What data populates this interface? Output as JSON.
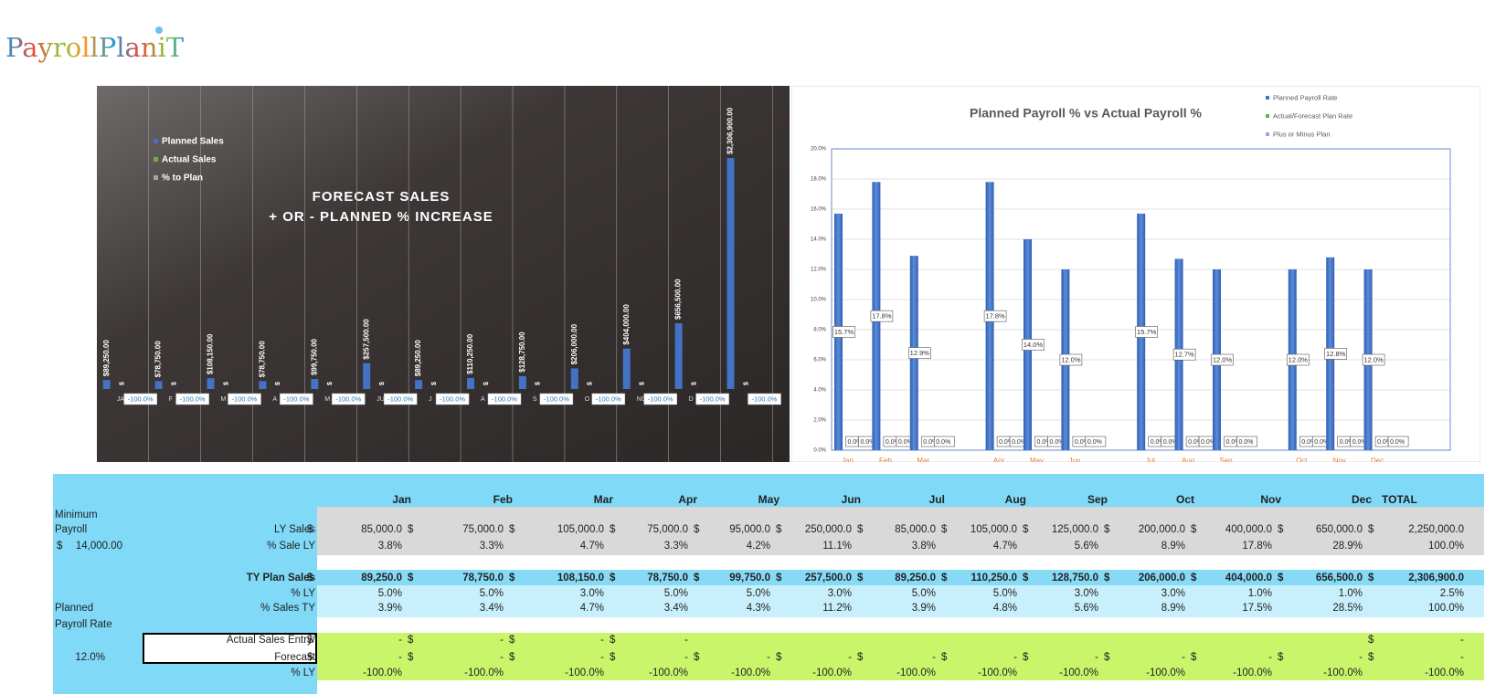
{
  "logo": "PayrollPlaniT",
  "chart_data": [
    {
      "type": "bar",
      "title": "FORECAST SALES",
      "subtitle": "+ OR - PLANNED % INCREASE",
      "categories": [
        "JA",
        "F",
        "M",
        "A",
        "M",
        "JU",
        "J",
        "A",
        "S",
        "O",
        "NO",
        "D",
        null
      ],
      "ylim": [
        0,
        3000000
      ],
      "series": [
        {
          "name": "Planned Sales",
          "color": "#4472c4",
          "values": [
            89250,
            78750,
            108150,
            78750,
            99750,
            257500,
            89250,
            110250,
            128750,
            206000,
            404000,
            656500,
            2306900
          ],
          "value_labels": [
            "$89,250.00",
            "$78,750.00",
            "$108,150.00",
            "$78,750.00",
            "$99,750.00",
            "$257,500.00",
            "$89,250.00",
            "$110,250.00",
            "$128,750.00",
            "$206,000.00",
            "$404,000.00",
            "$656,500.00",
            "$2,306,900.00"
          ]
        },
        {
          "name": "Actual Sales",
          "color": "#70ad47",
          "values": [
            0,
            0,
            0,
            0,
            0,
            0,
            0,
            0,
            0,
            0,
            0,
            0,
            0
          ],
          "value_labels": [
            "$",
            "$",
            "$",
            "$",
            "$",
            "$",
            "$",
            "$",
            "$",
            "$",
            "$",
            "$",
            "$"
          ]
        },
        {
          "name": "% to Plan",
          "color": "#a5a5a5",
          "values": [
            -100,
            -100,
            -100,
            -100,
            -100,
            -100,
            -100,
            -100,
            -100,
            -100,
            -100,
            -100,
            -100
          ],
          "value_labels": [
            "-100.0%",
            "-100.0%",
            "-100.0%",
            "-100.0%",
            "-100.0%",
            "-100.0%",
            "-100.0%",
            "-100.0%",
            "-100.0%",
            "-100.0%",
            "-100.0%",
            "-100.0%",
            "-100.0%"
          ]
        }
      ]
    },
    {
      "type": "bar",
      "title": "Planned Payroll % vs Actual Payroll %",
      "categories": [
        "Jan",
        "Feb",
        "Mar",
        null,
        "Apr",
        "May",
        "Jun",
        null,
        "Jul",
        "Aug",
        "Sep",
        null,
        "Oct",
        "Nov",
        "Dec"
      ],
      "ylim": [
        0,
        20
      ],
      "grid": true,
      "yticks": [
        {
          "value": 0,
          "label": "0.0%"
        },
        {
          "value": 2,
          "label": "2.0%"
        },
        {
          "value": 4,
          "label": "4.0%"
        },
        {
          "value": 6,
          "label": "6.0%"
        },
        {
          "value": 8,
          "label": "8.0%"
        },
        {
          "value": 10,
          "label": "10.0%"
        },
        {
          "value": 12,
          "label": "12.0%"
        },
        {
          "value": 14,
          "label": "14.0%"
        },
        {
          "value": 16,
          "label": "16.0%"
        },
        {
          "value": 18,
          "label": "18.0%"
        },
        {
          "value": 20,
          "label": "20.0%"
        }
      ],
      "series": [
        {
          "name": "Planned Payroll Rate",
          "color": "#4472c4",
          "values": [
            15.7,
            17.8,
            12.9,
            null,
            17.8,
            14.0,
            12.0,
            null,
            15.7,
            12.7,
            12.0,
            null,
            12.0,
            12.8,
            12.0
          ],
          "value_labels": [
            "15.7%",
            "17.8%",
            "12.9%",
            null,
            "17.8%",
            "14.0%",
            "12.0%",
            null,
            "15.7%",
            "12.7%",
            "12.0%",
            null,
            "12.0%",
            "12.8%",
            "12.0%"
          ]
        },
        {
          "name": "Actual/Forecast Plan Rate",
          "color": "#70ad47",
          "values": [
            0,
            0,
            0,
            null,
            0,
            0,
            0,
            null,
            0,
            0,
            0,
            null,
            0,
            0,
            0
          ],
          "value_labels": [
            "0.0%",
            "0.0%",
            "0.0%",
            null,
            "0.0%",
            "0.0%",
            "0.0%",
            null,
            "0.0%",
            "0.0%",
            "0.0%",
            null,
            "0.0%",
            "0.0%",
            "0.0%"
          ]
        },
        {
          "name": "Plus or Minus Plan",
          "color": "#8faadc",
          "values": [
            0,
            0,
            0,
            null,
            0,
            0,
            0,
            null,
            0,
            0,
            0,
            null,
            0,
            0,
            0
          ],
          "value_labels": [
            "0.0%",
            "0.0%",
            "0.0%",
            null,
            "0.0%",
            "0.0%",
            "0.0%",
            null,
            "0.0%",
            "0.0%",
            "0.0%",
            null,
            "0.0%",
            "0.0%",
            "0.0%"
          ]
        }
      ]
    }
  ],
  "table": {
    "columns": [
      "Jan",
      "Feb",
      "Mar",
      "Apr",
      "May",
      "Jun",
      "Jul",
      "Aug",
      "Sep",
      "Oct",
      "Nov",
      "Dec",
      "TOTAL"
    ],
    "side": {
      "minimum_payroll": [
        "Minimum",
        "Payroll"
      ],
      "minimum_value": [
        "$",
        "14,000.00"
      ],
      "planned_rate": [
        "Planned",
        "Payroll Rate"
      ],
      "rate_value": "12.0%"
    },
    "rows": [
      {
        "label": "LY Sales",
        "cells": [
          [
            "$",
            "85,000.0"
          ],
          [
            "$",
            "75,000.0"
          ],
          [
            "$",
            "105,000.0"
          ],
          [
            "$",
            "75,000.0"
          ],
          [
            "$",
            "95,000.0"
          ],
          [
            "$",
            "250,000.0"
          ],
          [
            "$",
            "85,000.0"
          ],
          [
            "$",
            "105,000.0"
          ],
          [
            "$",
            "125,000.0"
          ],
          [
            "$",
            "200,000.0"
          ],
          [
            "$",
            "400,000.0"
          ],
          [
            "$",
            "650,000.0"
          ],
          [
            "$",
            "2,250,000.0"
          ]
        ]
      },
      {
        "label": "% Sale LY",
        "cells": [
          "3.8%",
          "3.3%",
          "4.7%",
          "3.3%",
          "4.2%",
          "11.1%",
          "3.8%",
          "4.7%",
          "5.6%",
          "8.9%",
          "17.8%",
          "28.9%",
          "100.0%"
        ]
      },
      {
        "label": "TY Plan Sales",
        "cells": [
          [
            "$",
            "89,250.0"
          ],
          [
            "$",
            "78,750.0"
          ],
          [
            "$",
            "108,150.0"
          ],
          [
            "$",
            "78,750.0"
          ],
          [
            "$",
            "99,750.0"
          ],
          [
            "$",
            "257,500.0"
          ],
          [
            "$",
            "89,250.0"
          ],
          [
            "$",
            "110,250.0"
          ],
          [
            "$",
            "128,750.0"
          ],
          [
            "$",
            "206,000.0"
          ],
          [
            "$",
            "404,000.0"
          ],
          [
            "$",
            "656,500.0"
          ],
          [
            "$",
            "2,306,900.0"
          ]
        ]
      },
      {
        "label": "% LY",
        "cells": [
          "5.0%",
          "5.0%",
          "3.0%",
          "5.0%",
          "5.0%",
          "3.0%",
          "5.0%",
          "5.0%",
          "3.0%",
          "3.0%",
          "1.0%",
          "1.0%",
          "2.5%"
        ]
      },
      {
        "label": "% Sales TY",
        "cells": [
          "3.9%",
          "3.4%",
          "4.7%",
          "3.4%",
          "4.3%",
          "11.2%",
          "3.9%",
          "4.8%",
          "5.6%",
          "8.9%",
          "17.5%",
          "28.5%",
          "100.0%"
        ]
      },
      {
        "label": "Actual Sales Entry/",
        "cells": [
          [
            "$",
            "-"
          ],
          [
            "$",
            "-"
          ],
          [
            "$",
            "-"
          ],
          [
            "$",
            "-"
          ],
          null,
          null,
          null,
          null,
          null,
          null,
          null,
          null,
          [
            "$",
            "-"
          ]
        ]
      },
      {
        "label": "Forecast",
        "cells": [
          [
            "$",
            "-"
          ],
          [
            "$",
            "-"
          ],
          [
            "$",
            "-"
          ],
          [
            "$",
            "-"
          ],
          [
            "$",
            "-"
          ],
          [
            "$",
            "-"
          ],
          [
            "$",
            "-"
          ],
          [
            "$",
            "-"
          ],
          [
            "$",
            "-"
          ],
          [
            "$",
            "-"
          ],
          [
            "$",
            "-"
          ],
          [
            "$",
            "-"
          ],
          [
            "$",
            "-"
          ]
        ]
      },
      {
        "label": "% LY",
        "cells": [
          "-100.0%",
          "-100.0%",
          "-100.0%",
          "-100.0%",
          "-100.0%",
          "-100.0%",
          "-100.0%",
          "-100.0%",
          "-100.0%",
          "-100.0%",
          "-100.0%",
          "-100.0%",
          "-100.0%"
        ]
      }
    ]
  }
}
